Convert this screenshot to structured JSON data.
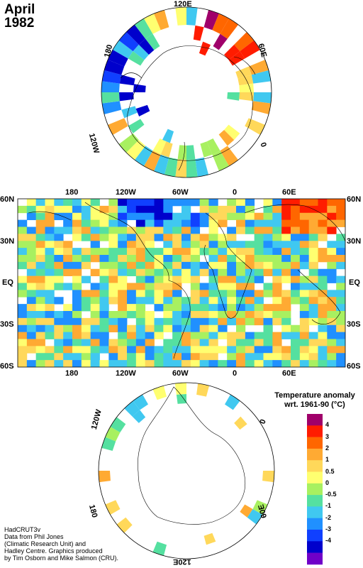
{
  "title": {
    "month": "April",
    "year": "1982"
  },
  "north_pole_map": {
    "labels": [
      "120E",
      "60E",
      "0",
      "120W",
      "180"
    ]
  },
  "world_map": {
    "top_lon_labels": [
      "180",
      "120W",
      "60W",
      "0",
      "60E"
    ],
    "bottom_lon_labels": [
      "180",
      "120W",
      "60W",
      "0",
      "60E"
    ],
    "left_lat_labels": [
      "60N",
      "30N",
      "EQ",
      "30S",
      "60S"
    ],
    "right_lat_labels": [
      "60N",
      "30N",
      "EQ",
      "30S",
      "60S"
    ]
  },
  "south_pole_map": {
    "labels": [
      "120W",
      "0",
      "180",
      "60E",
      "120E"
    ]
  },
  "legend": {
    "title_line1": "Temperature anomaly",
    "title_line2": "wrt. 1961-90  (°C)",
    "labels": [
      "4",
      "3",
      "2",
      "1",
      "0.5",
      "0",
      "-0.5",
      "-1",
      "-2",
      "-3",
      "-4"
    ],
    "colors": [
      "#a0006a",
      "#ff1c00",
      "#ff6600",
      "#ffaa33",
      "#ffd85a",
      "#ffff70",
      "#a8f060",
      "#55e0a0",
      "#40c8f0",
      "#2090ff",
      "#1040ff",
      "#0000cc",
      "#7000c8"
    ]
  },
  "credits": [
    "HadCRUT3v",
    "Data from Phil Jones",
    "(Climatic Research Unit) and",
    "Hadley Centre.  Graphics produced",
    "by Tim Osborn and Mike Salmon (CRU)."
  ]
}
